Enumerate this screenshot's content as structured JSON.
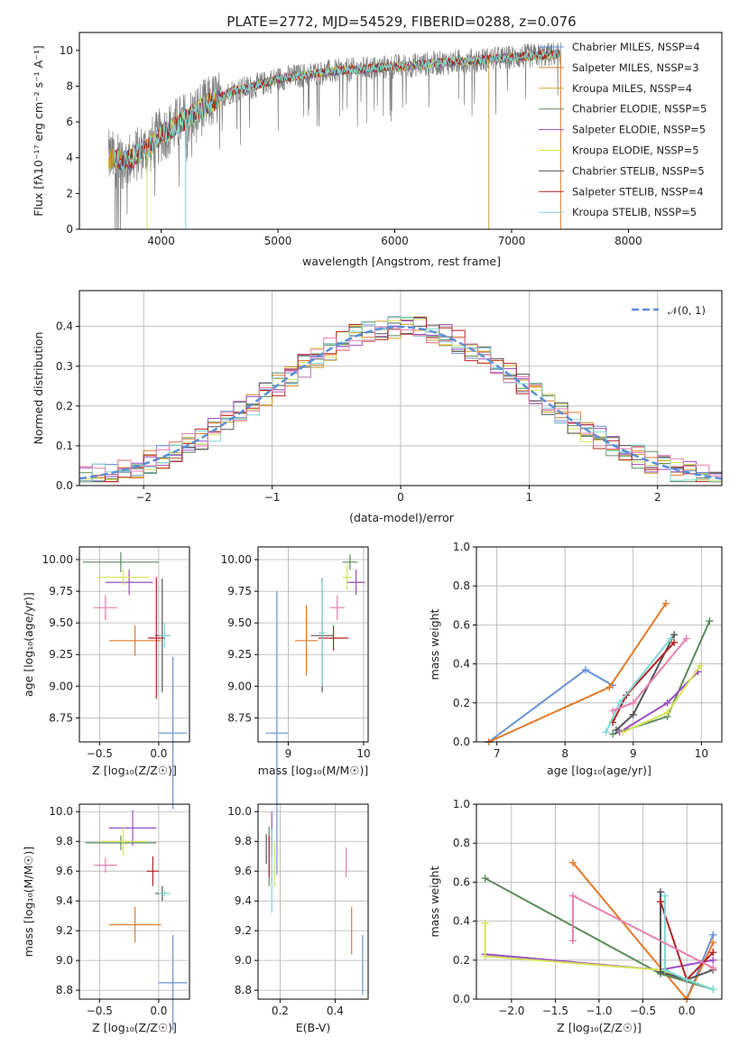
{
  "title": "PLATE=2772, MJD=54529, FIBERID=0288, z=0.076",
  "colors": {
    "chabrier_miles": "#6a8fd6",
    "salpeter_miles": "#e07a2a",
    "kroupa_miles": "#c9a227",
    "chabrier_elodie": "#5b8a5b",
    "salpeter_elodie": "#9a4dc2",
    "kroupa_elodie": "#d6e35a",
    "chabrier_stelib": "#555555",
    "salpeter_stelib": "#b22222",
    "kroupa_stelib": "#7fd6d6",
    "spectrum": "#808080",
    "pink": "#e87fb0",
    "normal": "#5a8fd6"
  },
  "spectrum_panel": {
    "xlabel": "wavelength [Angstrom, rest frame]",
    "ylabel": "Flux [fλ10⁻¹⁷ erg cm⁻² s⁻¹ A⁻¹]",
    "xticks": [
      "4000",
      "5000",
      "6000",
      "7000",
      "8000"
    ],
    "yticks": [
      "0",
      "2",
      "4",
      "6",
      "8",
      "10"
    ],
    "legend": [
      "Chabrier MILES, NSSP=4",
      "Salpeter MILES, NSSP=3",
      "Kroupa MILES, NSSP=4",
      "Chabrier ELODIE, NSSP=5",
      "Salpeter ELODIE, NSSP=5",
      "Kroupa ELODIE, NSSP=5",
      "Chabrier STELIB, NSSP=5",
      "Salpeter STELIB, NSSP=4",
      "Kroupa STELIB, NSSP=5"
    ]
  },
  "residual_panel": {
    "xlabel": "(data-model)/error",
    "ylabel": "Normed distribution",
    "xticks": [
      "−2",
      "−1",
      "0",
      "1",
      "2"
    ],
    "yticks": [
      "0.0",
      "0.1",
      "0.2",
      "0.3",
      "0.4"
    ],
    "legend": "𝒩(0, 1)"
  },
  "panels": {
    "p3": {
      "xlabel": "Z [log₁₀(Z/Z☉)]",
      "ylabel": "age  [log₁₀(age/yr)]",
      "xticks": [
        "−0.5",
        "0.0"
      ],
      "yticks": [
        "8.75",
        "9.00",
        "9.25",
        "9.50",
        "9.75",
        "10.00"
      ]
    },
    "p4": {
      "xlabel": "mass [log₁₀(M/M☉)]",
      "xticks": [
        "9",
        "10"
      ],
      "yticks": [
        "8.75",
        "9.00",
        "9.25",
        "9.50",
        "9.75",
        "10.00"
      ]
    },
    "p5": {
      "xlabel": "age  [log₁₀(age/yr)]",
      "ylabel": "mass weight",
      "xticks": [
        "7",
        "8",
        "9",
        "10"
      ],
      "yticks": [
        "0.0",
        "0.2",
        "0.4",
        "0.6",
        "0.8",
        "1.0"
      ]
    },
    "p6": {
      "xlabel": "Z [log₁₀(Z/Z☉)]",
      "ylabel": "mass [log₁₀(M/M☉)]",
      "xticks": [
        "−0.5",
        "0.0"
      ],
      "yticks": [
        "8.8",
        "9.0",
        "9.2",
        "9.4",
        "9.6",
        "9.8",
        "10.0"
      ]
    },
    "p7": {
      "xlabel": "E(B-V)",
      "xticks": [
        "0.2",
        "0.4"
      ],
      "yticks": [
        "8.8",
        "9.0",
        "9.2",
        "9.4",
        "9.6",
        "9.8",
        "10.0"
      ]
    },
    "p8": {
      "xlabel": "Z [log₁₀(Z/Z☉)]",
      "ylabel": "mass weight",
      "xticks": [
        "−2.0",
        "−1.5",
        "−1.0",
        "−0.5",
        "0.0"
      ],
      "yticks": [
        "0.0",
        "0.2",
        "0.4",
        "0.6",
        "0.8",
        "1.0"
      ]
    }
  },
  "chart_data": [
    {
      "type": "line",
      "panel": "spectrum",
      "xlim": [
        3300,
        8800
      ],
      "ylim": [
        0,
        11
      ],
      "description_series": "observed spectrum and 9 model fits",
      "model_shape": [
        [
          3550,
          4.0
        ],
        [
          3700,
          3.8
        ],
        [
          3900,
          4.6
        ],
        [
          4000,
          5.3
        ],
        [
          4200,
          6.1
        ],
        [
          4400,
          7.0
        ],
        [
          4600,
          7.7
        ],
        [
          4800,
          8.0
        ],
        [
          5000,
          8.4
        ],
        [
          5300,
          8.7
        ],
        [
          5600,
          8.9
        ],
        [
          6000,
          9.1
        ],
        [
          6400,
          9.3
        ],
        [
          6800,
          9.5
        ],
        [
          7000,
          9.6
        ],
        [
          7200,
          9.7
        ],
        [
          7420,
          9.8
        ]
      ]
    },
    {
      "type": "bar",
      "panel": "residuals",
      "xlim": [
        -2.5,
        2.5
      ],
      "ylim": [
        0,
        0.49
      ],
      "grid": true,
      "legend_position": "top-right",
      "bin_width": 0.1,
      "normal_curve": {
        "mean": 0,
        "sigma": 1
      }
    },
    {
      "type": "scatter",
      "panel": "p3",
      "xlim": [
        -0.67,
        0.26
      ],
      "ylim": [
        8.56,
        10.1
      ],
      "grid": true,
      "points": [
        {
          "color": "chabrier_miles",
          "x": 0.12,
          "y": 8.63,
          "xerr": 0.12,
          "yerr": 0.6
        },
        {
          "color": "salpeter_miles",
          "x": -0.2,
          "y": 9.36,
          "xerr": 0.22,
          "yerr": 0.12
        },
        {
          "color": "chabrier_elodie",
          "x": -0.32,
          "y": 9.98,
          "xerr": 0.32,
          "yerr": 0.08
        },
        {
          "color": "salpeter_elodie",
          "x": -0.25,
          "y": 9.82,
          "xerr": 0.2,
          "yerr": 0.1
        },
        {
          "color": "kroupa_elodie",
          "x": -0.3,
          "y": 9.86,
          "xerr": 0.22,
          "yerr": 0.06
        },
        {
          "color": "chabrier_stelib",
          "x": 0.03,
          "y": 9.4,
          "xerr": 0.06,
          "yerr": 0.45
        },
        {
          "color": "salpeter_stelib",
          "x": -0.02,
          "y": 9.38,
          "xerr": 0.07,
          "yerr": 0.48
        },
        {
          "color": "kroupa_stelib",
          "x": 0.05,
          "y": 9.4,
          "xerr": 0.05,
          "yerr": 0.1
        },
        {
          "color": "pink",
          "x": -0.45,
          "y": 9.62,
          "xerr": 0.1,
          "yerr": 0.1
        }
      ]
    },
    {
      "type": "scatter",
      "panel": "p4",
      "xlim": [
        8.6,
        10.06
      ],
      "ylim": [
        8.56,
        10.1
      ],
      "grid": true,
      "points": [
        {
          "color": "chabrier_miles",
          "x": 8.85,
          "y": 8.63,
          "xerr": 0.15,
          "yerr": 1.12
        },
        {
          "color": "salpeter_miles",
          "x": 9.24,
          "y": 9.36,
          "xerr": 0.15,
          "yerr": 0.28
        },
        {
          "color": "chabrier_elodie",
          "x": 9.82,
          "y": 9.98,
          "xerr": 0.1,
          "yerr": 0.06
        },
        {
          "color": "salpeter_elodie",
          "x": 9.9,
          "y": 9.82,
          "xerr": 0.12,
          "yerr": 0.1
        },
        {
          "color": "kroupa_elodie",
          "x": 9.78,
          "y": 9.86,
          "xerr": 0.06,
          "yerr": 0.1
        },
        {
          "color": "chabrier_stelib",
          "x": 9.45,
          "y": 9.4,
          "xerr": 0.15,
          "yerr": 0.45
        },
        {
          "color": "salpeter_stelib",
          "x": 9.6,
          "y": 9.38,
          "xerr": 0.2,
          "yerr": 0.1
        },
        {
          "color": "kroupa_stelib",
          "x": 9.45,
          "y": 9.42,
          "xerr": 0.05,
          "yerr": 0.42
        },
        {
          "color": "pink",
          "x": 9.65,
          "y": 9.62,
          "xerr": 0.1,
          "yerr": 0.1
        }
      ]
    },
    {
      "type": "line",
      "panel": "p5",
      "xlim": [
        6.7,
        10.3
      ],
      "ylim": [
        0,
        1.0
      ],
      "grid": true,
      "series": [
        {
          "color": "chabrier_miles",
          "x": [
            6.88,
            8.3,
            8.7
          ],
          "y": [
            0.0,
            0.37,
            0.29
          ]
        },
        {
          "color": "salpeter_miles",
          "x": [
            6.88,
            8.65,
            9.48
          ],
          "y": [
            0.0,
            0.28,
            0.71
          ]
        },
        {
          "color": "chabrier_elodie",
          "x": [
            8.7,
            9.5,
            10.12
          ],
          "y": [
            0.04,
            0.13,
            0.62
          ]
        },
        {
          "color": "salpeter_elodie",
          "x": [
            8.8,
            9.5,
            9.95
          ],
          "y": [
            0.05,
            0.2,
            0.36
          ]
        },
        {
          "color": "kroupa_elodie",
          "x": [
            8.85,
            9.5,
            9.98
          ],
          "y": [
            0.05,
            0.15,
            0.39
          ]
        },
        {
          "color": "chabrier_stelib",
          "x": [
            8.75,
            9.0,
            9.6
          ],
          "y": [
            0.06,
            0.14,
            0.55
          ]
        },
        {
          "color": "salpeter_stelib",
          "x": [
            8.7,
            8.9,
            9.6
          ],
          "y": [
            0.1,
            0.24,
            0.51
          ]
        },
        {
          "color": "kroupa_stelib",
          "x": [
            8.6,
            8.8,
            9.55
          ],
          "y": [
            0.05,
            0.2,
            0.53
          ]
        },
        {
          "color": "pink",
          "x": [
            8.7,
            9.0,
            9.78
          ],
          "y": [
            0.16,
            0.2,
            0.53
          ]
        }
      ]
    },
    {
      "type": "scatter",
      "panel": "p6",
      "xlim": [
        -0.67,
        0.26
      ],
      "ylim": [
        8.74,
        10.05
      ],
      "grid": true,
      "points": [
        {
          "color": "chabrier_miles",
          "x": 0.12,
          "y": 8.85,
          "xerr": 0.12,
          "yerr": 0.32
        },
        {
          "color": "salpeter_miles",
          "x": -0.2,
          "y": 9.24,
          "xerr": 0.22,
          "yerr": 0.12
        },
        {
          "color": "chabrier_elodie",
          "x": -0.32,
          "y": 9.79,
          "xerr": 0.3,
          "yerr": 0.05
        },
        {
          "color": "salpeter_elodie",
          "x": -0.22,
          "y": 9.89,
          "xerr": 0.2,
          "yerr": 0.12
        },
        {
          "color": "kroupa_elodie",
          "x": -0.3,
          "y": 9.8,
          "xerr": 0.2,
          "yerr": 0.1
        },
        {
          "color": "chabrier_stelib",
          "x": 0.03,
          "y": 9.45,
          "xerr": 0.06,
          "yerr": 0.05
        },
        {
          "color": "salpeter_stelib",
          "x": -0.05,
          "y": 9.6,
          "xerr": 0.05,
          "yerr": 0.1
        },
        {
          "color": "kroupa_stelib",
          "x": 0.05,
          "y": 9.45,
          "xerr": 0.05,
          "yerr": 0.02
        },
        {
          "color": "pink",
          "x": -0.45,
          "y": 9.64,
          "xerr": 0.1,
          "yerr": 0.05
        }
      ]
    },
    {
      "type": "scatter",
      "panel": "p7",
      "xlim": [
        0.12,
        0.52
      ],
      "ylim": [
        8.74,
        10.05
      ],
      "grid": true,
      "points": [
        {
          "color": "chabrier_miles",
          "x": 0.5,
          "y": 8.97,
          "yerr": 0.2
        },
        {
          "color": "salpeter_miles",
          "x": 0.46,
          "y": 9.2,
          "yerr": 0.16
        },
        {
          "color": "pink",
          "x": 0.44,
          "y": 9.66,
          "yerr": 0.1
        },
        {
          "color": "salpeter_elodie",
          "x": 0.17,
          "y": 9.85,
          "yerr": 0.15
        },
        {
          "color": "kroupa_elodie",
          "x": 0.18,
          "y": 9.65,
          "yerr": 0.15
        },
        {
          "color": "chabrier_elodie",
          "x": 0.16,
          "y": 9.7,
          "yerr": 0.2
        },
        {
          "color": "salpeter_stelib",
          "x": 0.16,
          "y": 9.7,
          "yerr": 0.14
        },
        {
          "color": "kroupa_stelib",
          "x": 0.17,
          "y": 9.6,
          "yerr": 0.28
        },
        {
          "color": "chabrier_stelib",
          "x": 0.15,
          "y": 9.75,
          "yerr": 0.1
        }
      ]
    },
    {
      "type": "line",
      "panel": "p8",
      "xlim": [
        -2.4,
        0.4
      ],
      "ylim": [
        0,
        1.0
      ],
      "grid": true,
      "series": [
        {
          "color": "chabrier_miles",
          "x": [
            0.0,
            0.3
          ],
          "y": [
            0.0,
            0.33
          ]
        },
        {
          "color": "salpeter_miles",
          "x": [
            -1.3,
            0.0,
            0.3
          ],
          "y": [
            0.7,
            0.0,
            0.29
          ]
        },
        {
          "color": "chabrier_elodie",
          "x": [
            -2.3,
            -0.3,
            0.3
          ],
          "y": [
            0.62,
            0.13,
            0.05
          ]
        },
        {
          "color": "salpeter_elodie",
          "x": [
            -2.3,
            -0.3,
            0.3
          ],
          "y": [
            0.23,
            0.15,
            0.2
          ]
        },
        {
          "color": "kroupa_elodie",
          "x": [
            -2.3,
            -2.3,
            -0.3,
            0.3
          ],
          "y": [
            0.39,
            0.22,
            0.15,
            0.05
          ]
        },
        {
          "color": "chabrier_stelib",
          "x": [
            -0.3,
            -0.3,
            0.0,
            0.3
          ],
          "y": [
            0.55,
            0.14,
            0.1,
            0.15
          ]
        },
        {
          "color": "salpeter_stelib",
          "x": [
            -0.3,
            0.0,
            0.3
          ],
          "y": [
            0.5,
            0.1,
            0.24
          ]
        },
        {
          "color": "kroupa_stelib",
          "x": [
            -0.25,
            -0.25,
            0.0,
            0.3
          ],
          "y": [
            0.53,
            0.15,
            0.1,
            0.05
          ]
        },
        {
          "color": "pink",
          "x": [
            -1.3,
            -1.3,
            0.3
          ],
          "y": [
            0.3,
            0.53,
            0.16
          ]
        }
      ]
    }
  ]
}
